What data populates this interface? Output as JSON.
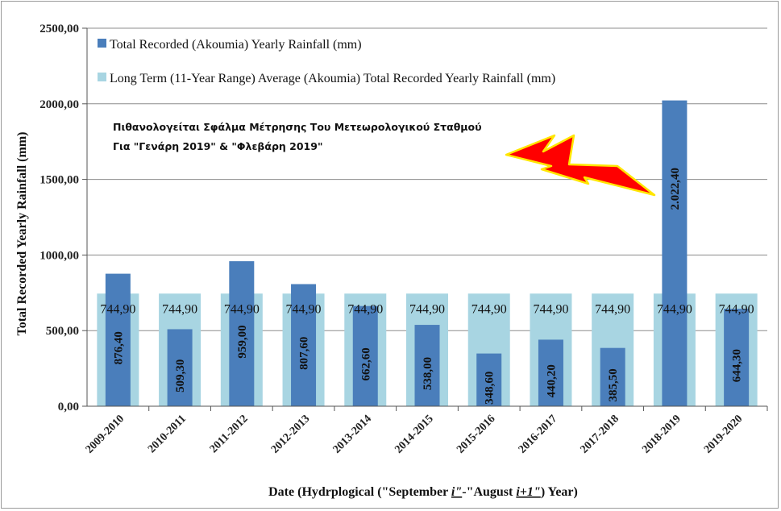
{
  "chart_data": {
    "type": "bar",
    "title": "",
    "xlabel_parts": [
      "Date (Hydrplogical (\"September ",
      "i\"",
      "-\"August ",
      "i+1\"",
      ") Year)"
    ],
    "ylabel": "Total Recorded Yearly Rainfall (mm)",
    "ylim": [
      0,
      2500
    ],
    "yticks": [
      0,
      500,
      1000,
      1500,
      2000,
      2500
    ],
    "ytick_labels": [
      "0,00",
      "500,00",
      "1000,00",
      "1500,00",
      "2000,00",
      "2500,00"
    ],
    "grid": true,
    "legend_position": "top-left",
    "categories": [
      "2009-2010",
      "2010-2011",
      "2011-2012",
      "2012-2013",
      "2013-2014",
      "2014-2015",
      "2015-2016",
      "2016-2017",
      "2017-2018",
      "2018-2019",
      "2019-2020"
    ],
    "series": [
      {
        "name": "Total Recorded (Akoumia) Yearly Rainfall (mm)",
        "color": "#4a7ebb",
        "values": [
          876.4,
          509.3,
          959.0,
          807.6,
          662.6,
          538.0,
          348.6,
          440.2,
          385.5,
          2022.4,
          644.3
        ],
        "labels": [
          "876,40",
          "509,30",
          "959,00",
          "807,60",
          "662,60",
          "538,00",
          "348,60",
          "440,20",
          "385,50",
          "2.022,40",
          "644,30"
        ]
      },
      {
        "name": "Long Term (11-Year Range) Average (Akoumia) Total Recorded Yearly Rainfall (mm)",
        "color": "#a8d5e2",
        "values": [
          744.9,
          744.9,
          744.9,
          744.9,
          744.9,
          744.9,
          744.9,
          744.9,
          744.9,
          744.9,
          744.9
        ],
        "labels": [
          "744,90",
          "744,90",
          "744,90",
          "744,90",
          "744,90",
          "744,90",
          "744,90",
          "744,90",
          "744,90",
          "744,90",
          "744,90"
        ]
      }
    ],
    "annotation": {
      "lines": [
        "Πιθανολογείται Σφάλμα Μέτρησης Του Μετεωρολογικού Σταθμού",
        "Για \"Γενάρη 2019\" & \"Φλεβάρη 2019\""
      ],
      "icon": "lightning-bolt-icon",
      "icon_color": "#ff0000"
    }
  }
}
